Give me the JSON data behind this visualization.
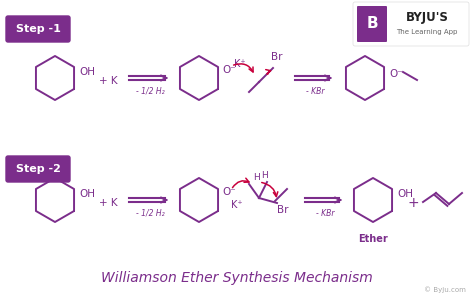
{
  "title": "Williamson Ether Synthesis Mechanism",
  "title_color": "#7B2D8B",
  "title_fontsize": 10,
  "bg_color": "#FFFFFF",
  "step1_label": "Step -1",
  "step2_label": "Step -2",
  "step_bg_color": "#7B2D8B",
  "step_text_color": "#FFFFFF",
  "step_fontsize": 8,
  "molecule_color": "#7B2D8B",
  "arrow_color": "#7B2D8B",
  "curved_arrow_color": "#C8003C",
  "byju_text": "© Byju.com",
  "byju_color": "#AAAAAA",
  "footer_fontsize": 5,
  "fig_width": 4.74,
  "fig_height": 3.01,
  "dpi": 100
}
